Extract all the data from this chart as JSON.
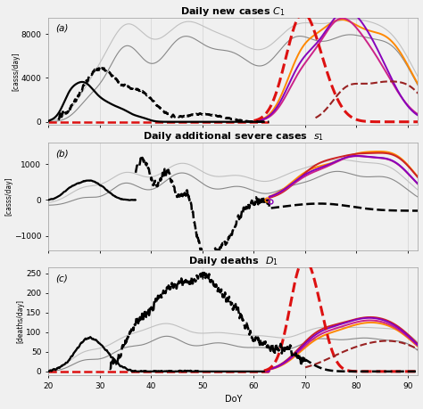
{
  "title_a": "Daily new cases $\\mathbf{\\mathit{C}}_\\mathbf{1}$",
  "title_b": "Daily additional severe cases  $\\mathbf{\\mathit{s}}_\\mathbf{1}$",
  "title_c": "Daily deaths  $\\mathbf{\\mathit{D}}_\\mathbf{1}$",
  "xlabel": "DoY",
  "ylabel_a": "[casss/day]",
  "ylabel_b": "[casss/day]",
  "ylabel_c": "[deaths/day]",
  "xmin": 20,
  "xmax": 92,
  "xticks": [
    20,
    30,
    40,
    50,
    60,
    70,
    80,
    90
  ],
  "label_a": "(a)",
  "label_b": "(b)",
  "label_c": "(c)",
  "colors": {
    "red_dashed": "#dd1111",
    "red_dark_dashed": "#992222",
    "gray_light": "#c0c0c0",
    "gray_dark": "#888888",
    "orange": "#ff8800",
    "purple": "#8800bb",
    "magenta": "#cc2288",
    "red_line": "#cc2222",
    "background": "#f0f0f0"
  }
}
